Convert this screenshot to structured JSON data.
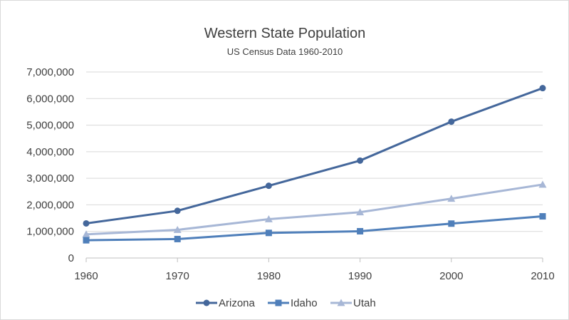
{
  "chart_data": {
    "type": "line",
    "title": "Western State Population",
    "subtitle": "US Census Data 1960-2010",
    "xlabel": "",
    "ylabel": "",
    "categories": [
      "1960",
      "1970",
      "1980",
      "1990",
      "2000",
      "2010"
    ],
    "ylim": [
      0,
      7000000
    ],
    "y_ticks": [
      0,
      1000000,
      2000000,
      3000000,
      4000000,
      5000000,
      6000000,
      7000000
    ],
    "y_tick_labels": [
      "0",
      "1,000,000",
      "2,000,000",
      "3,000,000",
      "4,000,000",
      "5,000,000",
      "6,000,000",
      "7,000,000"
    ],
    "grid": "horizontal",
    "legend_position": "bottom",
    "series": [
      {
        "name": "Arizona",
        "marker": "circle",
        "color": "#44679b",
        "values": [
          1302161,
          1775399,
          2718215,
          3665228,
          5130632,
          6392017
        ]
      },
      {
        "name": "Idaho",
        "marker": "square",
        "color": "#4f7fba",
        "values": [
          667191,
          713008,
          943935,
          1006749,
          1293953,
          1567582
        ]
      },
      {
        "name": "Utah",
        "marker": "triangle",
        "color": "#a7b7d6",
        "values": [
          890627,
          1059273,
          1461037,
          1722850,
          2233169,
          2763885
        ]
      }
    ]
  }
}
